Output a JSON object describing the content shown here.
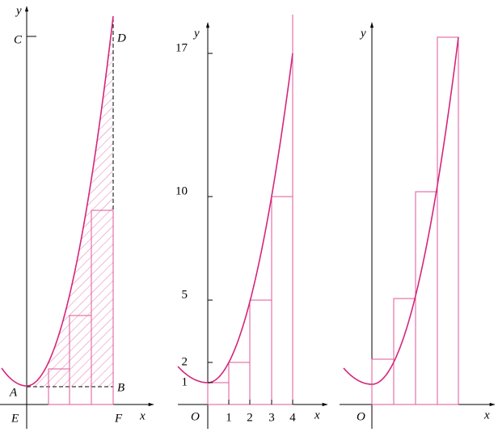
{
  "panels": [
    {
      "labels": [
        "y",
        "C",
        "D",
        "A",
        "B",
        "E",
        "F",
        "x"
      ]
    },
    {
      "labels": [
        "y",
        "O",
        "x"
      ],
      "xticks": [
        "1",
        "2",
        "3",
        "4"
      ],
      "yticks": [
        "1",
        "2",
        "5",
        "10",
        "17"
      ]
    },
    {
      "labels": [
        "y",
        "O",
        "x"
      ]
    }
  ]
}
